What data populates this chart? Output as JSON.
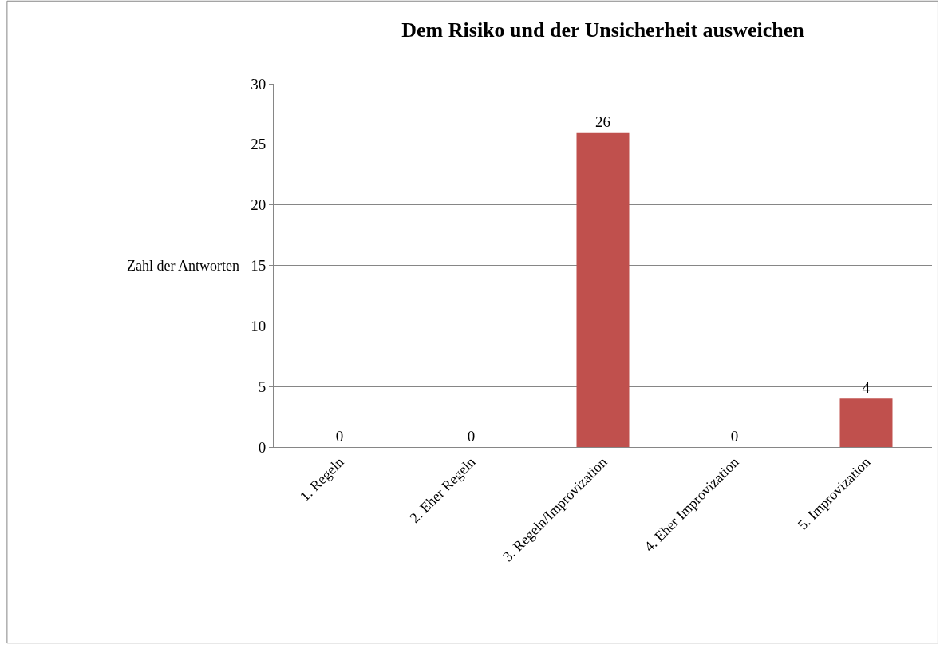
{
  "chart_data": {
    "type": "bar",
    "title": "Dem Risiko und der Unsicherheit ausweichen",
    "ylabel": "Zahl der Antworten",
    "categories": [
      "1. Regeln",
      "2. Eher Regeln",
      "3. Regeln/Improvization",
      "4. Eher Improvization",
      "5. Improvization"
    ],
    "values": [
      0,
      0,
      26,
      0,
      4
    ],
    "color": "#c0504d",
    "ylim": [
      0,
      30
    ],
    "yticks": [
      0,
      5,
      10,
      15,
      20,
      25,
      30
    ],
    "grid": "y",
    "data_labels": true,
    "legend": false
  }
}
